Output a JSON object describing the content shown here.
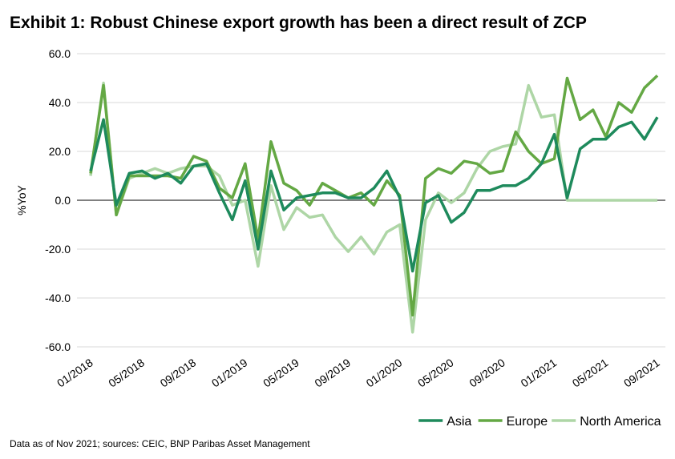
{
  "chart_data": {
    "type": "line",
    "title": "Exhibit 1: Robust Chinese export growth has been a direct result of ZCP",
    "ylabel": "%YoY",
    "source": "Data as of Nov 2021; sources: CEIC, BNP Paribas Asset Management",
    "categories": [
      "01/2018",
      null,
      null,
      null,
      "05/2018",
      null,
      null,
      null,
      "09/2018",
      null,
      null,
      null,
      "01/2019",
      null,
      null,
      null,
      "05/2019",
      null,
      null,
      null,
      "09/2019",
      null,
      null,
      null,
      "01/2020",
      null,
      null,
      null,
      "05/2020",
      null,
      null,
      null,
      "09/2020",
      null,
      null,
      null,
      "01/2021",
      null,
      null,
      null,
      "05/2021",
      null,
      null,
      null,
      "09/2021"
    ],
    "series": [
      {
        "name": "Asia",
        "color": "#1e8a5c",
        "values": [
          12,
          33,
          -2,
          11,
          12,
          9,
          11,
          7,
          14,
          15,
          3,
          -8,
          8,
          -20,
          12,
          -4,
          1,
          2,
          3,
          3,
          1,
          1,
          5,
          12,
          1,
          -29,
          -1,
          2,
          -9,
          -5,
          4,
          4,
          6,
          6,
          9,
          15,
          27,
          1,
          21,
          25,
          25,
          30,
          32,
          25,
          34
        ]
      },
      {
        "name": "Europe",
        "color": "#64a844",
        "values": [
          11,
          47,
          -6,
          10,
          10,
          10,
          10,
          9,
          18,
          16,
          5,
          1,
          15,
          -16,
          24,
          7,
          4,
          -2,
          7,
          4,
          1,
          3,
          -2,
          8,
          2,
          -47,
          9,
          13,
          11,
          16,
          15,
          11,
          12,
          28,
          20,
          15,
          17,
          50,
          33,
          37,
          26,
          40,
          36,
          46,
          51
        ]
      },
      {
        "name": "North America",
        "color": "#aed6a6",
        "values": [
          10,
          48,
          -6,
          9,
          11,
          13,
          11,
          13,
          14,
          14,
          10,
          -2,
          0,
          -27,
          6,
          -12,
          -3,
          -7,
          -6,
          -15,
          -21,
          -15,
          -22,
          -13,
          -10,
          -54,
          -8,
          3,
          -1,
          3,
          13,
          20,
          22,
          23,
          47,
          34,
          35,
          0,
          0,
          0,
          0,
          0,
          0,
          0,
          0
        ]
      }
    ],
    "ylim": [
      -60,
      60
    ],
    "yticks": [
      {
        "value": -60,
        "label": "-60.0"
      },
      {
        "value": -40,
        "label": "-40.0"
      },
      {
        "value": -20,
        "label": "-20.0"
      },
      {
        "value": 0,
        "label": "0.0"
      },
      {
        "value": 20,
        "label": "20.0"
      },
      {
        "value": 40,
        "label": "40.0"
      },
      {
        "value": 60,
        "label": "60.0"
      }
    ],
    "grid": true,
    "legend": "bottom-right"
  }
}
